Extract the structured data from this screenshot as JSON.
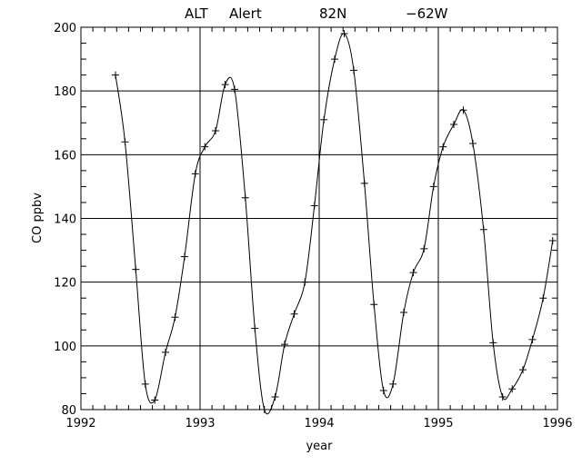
{
  "chart_data": {
    "type": "line",
    "title": {
      "station": "ALT",
      "site": "Alert",
      "lat": "82N",
      "lon": "−62W"
    },
    "xlabel": "year",
    "ylabel": "CO ppbv",
    "xlim": [
      1992,
      1996
    ],
    "ylim": [
      80,
      200
    ],
    "xticks": [
      "1992",
      "1993",
      "1994",
      "1995",
      "1996"
    ],
    "yticks": [
      "80",
      "100",
      "120",
      "140",
      "160",
      "180",
      "200"
    ],
    "grid": true,
    "series": [
      {
        "x": [
          1992.29,
          1992.37,
          1992.46,
          1992.54,
          1992.62,
          1992.71,
          1992.79,
          1992.87,
          1992.96,
          1993.04,
          1993.13,
          1993.21,
          1993.29,
          1993.38,
          1993.46,
          1993.54,
          1993.63,
          1993.71,
          1993.79,
          1993.88,
          1993.96,
          1994.04,
          1994.13,
          1994.21,
          1994.29,
          1994.38,
          1994.46,
          1994.54,
          1994.62,
          1994.71,
          1994.79,
          1994.88,
          1994.96,
          1995.04,
          1995.13,
          1995.21,
          1995.29,
          1995.38,
          1995.46,
          1995.54,
          1995.62,
          1995.71,
          1995.79,
          1995.88,
          1995.96
        ],
        "y": [
          185,
          164,
          124,
          88,
          83,
          98,
          109,
          128,
          154,
          162.5,
          167.5,
          182,
          180.5,
          146.5,
          105.5,
          80,
          84,
          100.5,
          110,
          120,
          144,
          171,
          190,
          198,
          186.5,
          151,
          113,
          86,
          88,
          110.5,
          123,
          130.5,
          150,
          162.5,
          169.5,
          174,
          163.5,
          136.5,
          101,
          84,
          86.5,
          92.5,
          102,
          115,
          133
        ]
      }
    ]
  }
}
